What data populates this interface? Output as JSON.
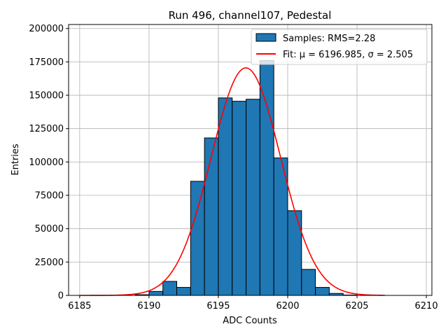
{
  "chart_data": {
    "type": "bar",
    "title": "Run 496, channel107, Pedestal",
    "xlabel": "ADC Counts",
    "ylabel": "Entries",
    "xlim": [
      6184.2,
      6210.4
    ],
    "ylim": [
      0,
      203000
    ],
    "x_ticks": [
      6185,
      6190,
      6195,
      6200,
      6205,
      6210
    ],
    "y_ticks": [
      0,
      25000,
      50000,
      75000,
      100000,
      125000,
      150000,
      175000,
      200000
    ],
    "grid": true,
    "bins": [
      6189,
      6190,
      6191,
      6192,
      6193,
      6194,
      6195,
      6196,
      6197,
      6198,
      6199,
      6200,
      6201,
      6202,
      6203,
      6204
    ],
    "bin_width": 1,
    "series": [
      {
        "name": "Samples: RMS=2.28",
        "kind": "histogram",
        "color": "#1f77b4",
        "values": [
          500,
          3000,
          10500,
          6000,
          85500,
          118000,
          148000,
          145500,
          147000,
          176000,
          103000,
          63500,
          19500,
          6000,
          1500,
          300
        ]
      },
      {
        "name": "Fit: μ = 6196.985, σ = 2.505",
        "kind": "gaussian_fit",
        "color": "#ff0000",
        "mu": 6196.985,
        "sigma": 2.505,
        "amplitude": 170500,
        "x_range": [
          6185,
          6207
        ]
      }
    ],
    "legend": {
      "position": "top-right",
      "entries": [
        "Samples: RMS=2.28",
        "Fit: μ = 6196.985, σ = 2.505"
      ]
    }
  }
}
